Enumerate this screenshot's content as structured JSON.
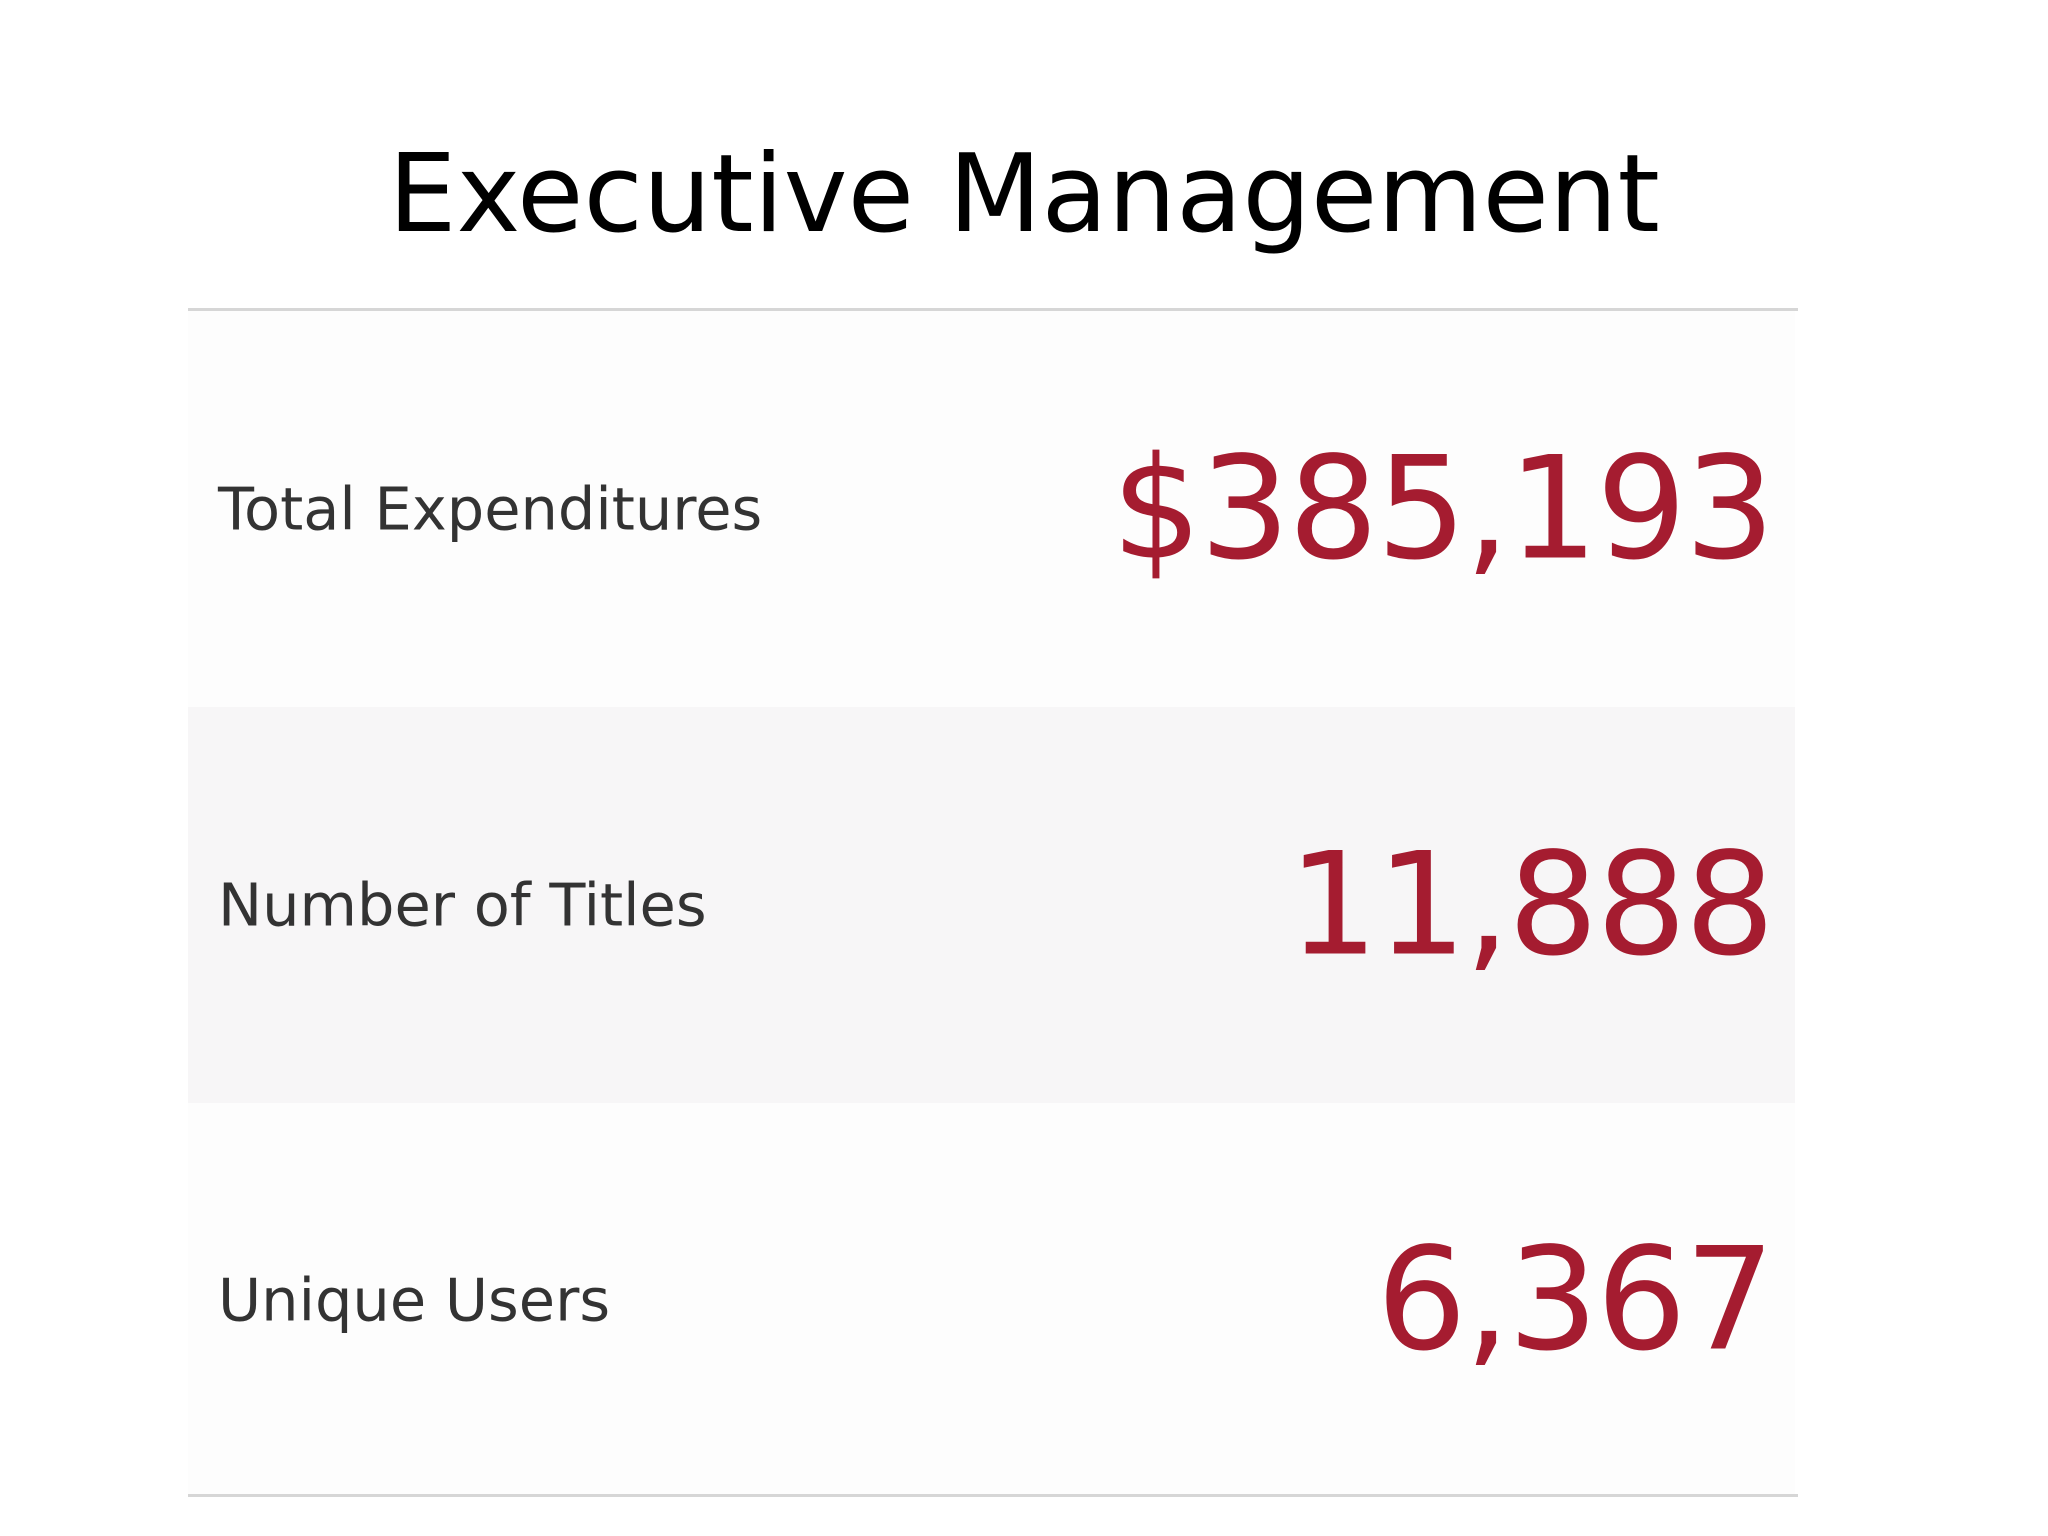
{
  "title": "Executive Management",
  "colors": {
    "value": "#a51c30",
    "label": "#333333",
    "row_shaded": "#f7f6f7"
  },
  "metrics": [
    {
      "label": "Total Expenditures",
      "value": "$385,193"
    },
    {
      "label": "Number of Titles",
      "value": "11,888"
    },
    {
      "label": "Unique Users",
      "value": "6,367"
    }
  ]
}
